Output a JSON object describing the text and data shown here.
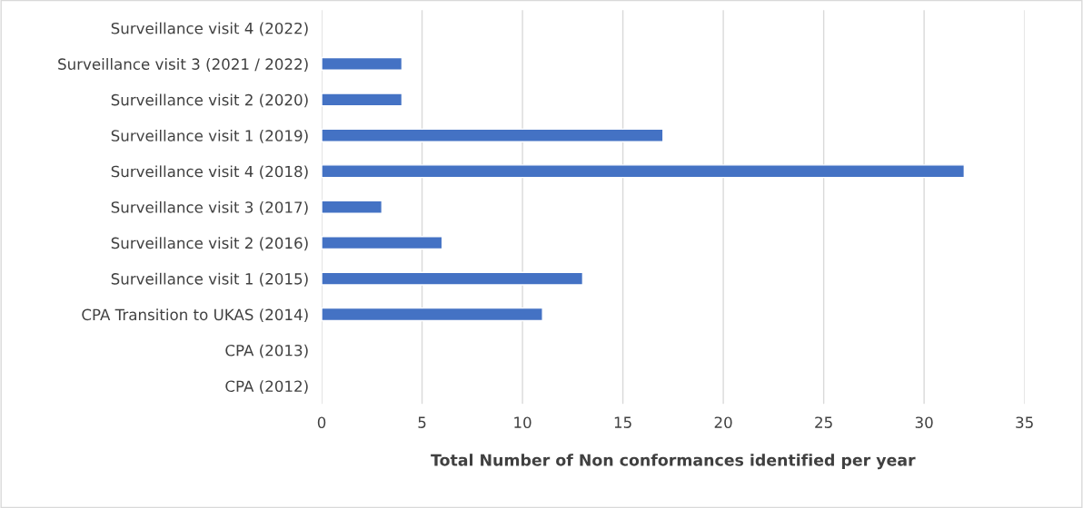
{
  "chart_data": {
    "type": "bar",
    "orientation": "horizontal",
    "xlabel": "Total Number of Non conformances identified per year",
    "categories": [
      "Surveillance visit 4 (2022)",
      "Surveillance visit 3 (2021 / 2022)",
      "Surveillance visit 2 (2020)",
      "Surveillance visit 1 (2019)",
      "Surveillance visit 4 (2018)",
      "Surveillance visit 3 (2017)",
      "Surveillance visit 2 (2016)",
      "Surveillance visit 1 (2015)",
      "CPA Transition to UKAS (2014)",
      "CPA (2013)",
      "CPA (2012)"
    ],
    "values": [
      null,
      4,
      4,
      17,
      32,
      3,
      6,
      13,
      11,
      null,
      null
    ],
    "color": "#4472c4",
    "xlim": [
      0,
      35
    ],
    "xticks": [
      0,
      5,
      10,
      15,
      20,
      25,
      30,
      35
    ],
    "grid": "x",
    "legend": false
  }
}
